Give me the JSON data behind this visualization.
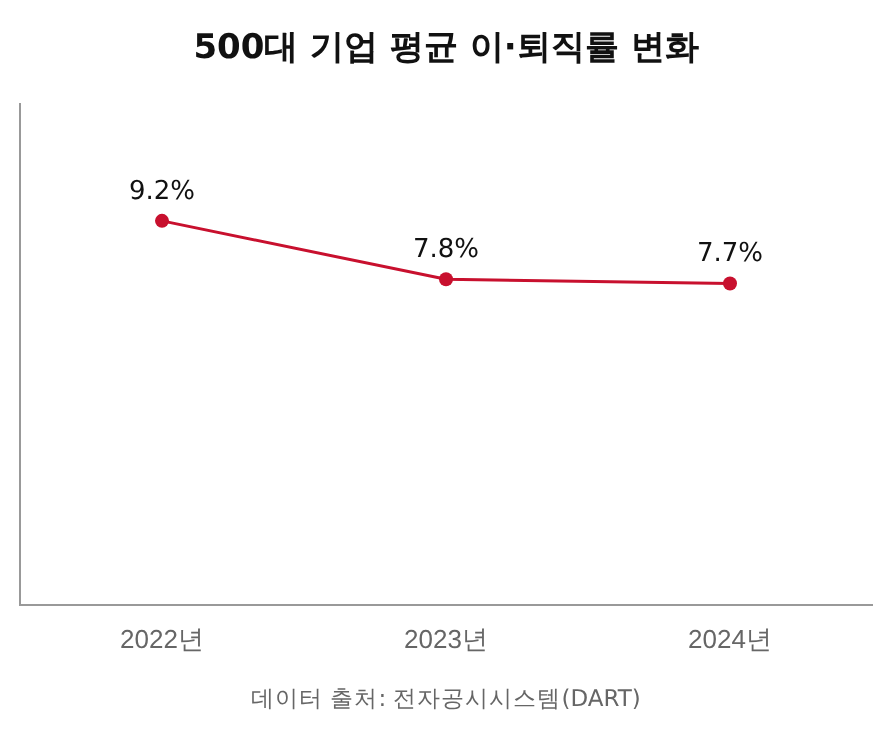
{
  "chart_data": {
    "type": "line",
    "title": "500대 기업 평균 이·퇴직률 변화",
    "categories": [
      "2022년",
      "2023년",
      "2024년"
    ],
    "series": [
      {
        "color": "#c8102e",
        "values": [
          9.2,
          7.8,
          7.7
        ],
        "value_labels": [
          "9.2%",
          "7.8%",
          "7.7%"
        ]
      }
    ],
    "grid": false,
    "legend": false,
    "marker": "circle",
    "line_style": "solid",
    "tick_labels": "x",
    "annotations": [
      "데이터 출처: 전자공시시스템(DART)"
    ]
  }
}
